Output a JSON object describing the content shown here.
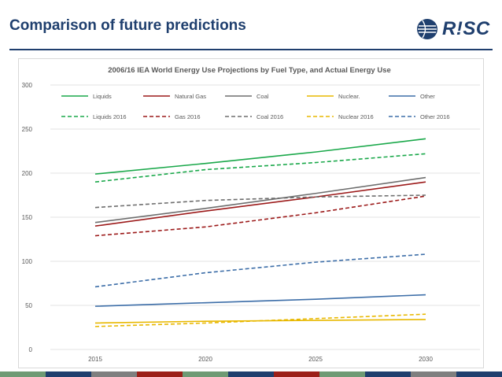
{
  "slide": {
    "title": "Comparison of future predictions"
  },
  "logo": {
    "text": "R!SC"
  },
  "colors": {
    "title": "#1f3f6e",
    "footer": [
      "#6f9a74",
      "#1f3f6e",
      "#7f7f7f",
      "#9c1f18",
      "#6f9a74",
      "#1f3f6e",
      "#9c1f18",
      "#6f9a74",
      "#1f3f6e",
      "#7f7f7f",
      "#1f3f6e"
    ]
  },
  "chart_data": {
    "type": "line",
    "title": "2006/16 IEA World Energy Use Projections by Fuel Type, and Actual Energy Use",
    "x": [
      2015,
      2020,
      2025,
      2030
    ],
    "x_ticks": [
      "2015",
      "2020",
      "2025",
      "2030"
    ],
    "y_ticks": [
      "0",
      "50",
      "100",
      "150",
      "200",
      "250",
      "300"
    ],
    "ylim": [
      0,
      300
    ],
    "xlabel": "",
    "ylabel": "",
    "grid": "horizontal",
    "legend": "top",
    "series": [
      {
        "name": "Liquids",
        "color": "#1aa84a",
        "dash": false,
        "values": [
          199,
          211,
          224,
          239
        ]
      },
      {
        "name": "Natural Gas",
        "color": "#9c1a1a",
        "dash": false,
        "values": [
          140,
          157,
          173,
          190
        ]
      },
      {
        "name": "Coal",
        "color": "#6e6e6e",
        "dash": false,
        "values": [
          144,
          160,
          177,
          195
        ]
      },
      {
        "name": "Nuclear.",
        "color": "#e8b800",
        "dash": false,
        "values": [
          30,
          32,
          33,
          34
        ]
      },
      {
        "name": "Other",
        "color": "#3d6ea8",
        "dash": false,
        "values": [
          49,
          53,
          57,
          62
        ]
      },
      {
        "name": "Liquids 2016",
        "color": "#1aa84a",
        "dash": true,
        "values": [
          190,
          204,
          212,
          222
        ]
      },
      {
        "name": "Gas 2016",
        "color": "#9c1a1a",
        "dash": true,
        "values": [
          129,
          139,
          155,
          174
        ]
      },
      {
        "name": "Coal 2016",
        "color": "#6e6e6e",
        "dash": true,
        "values": [
          161,
          169,
          173,
          175
        ]
      },
      {
        "name": "Nuclear 2016",
        "color": "#e8b800",
        "dash": true,
        "values": [
          26,
          30,
          35,
          40
        ]
      },
      {
        "name": "Other 2016",
        "color": "#3d6ea8",
        "dash": true,
        "values": [
          71,
          87,
          99,
          108
        ]
      }
    ]
  }
}
